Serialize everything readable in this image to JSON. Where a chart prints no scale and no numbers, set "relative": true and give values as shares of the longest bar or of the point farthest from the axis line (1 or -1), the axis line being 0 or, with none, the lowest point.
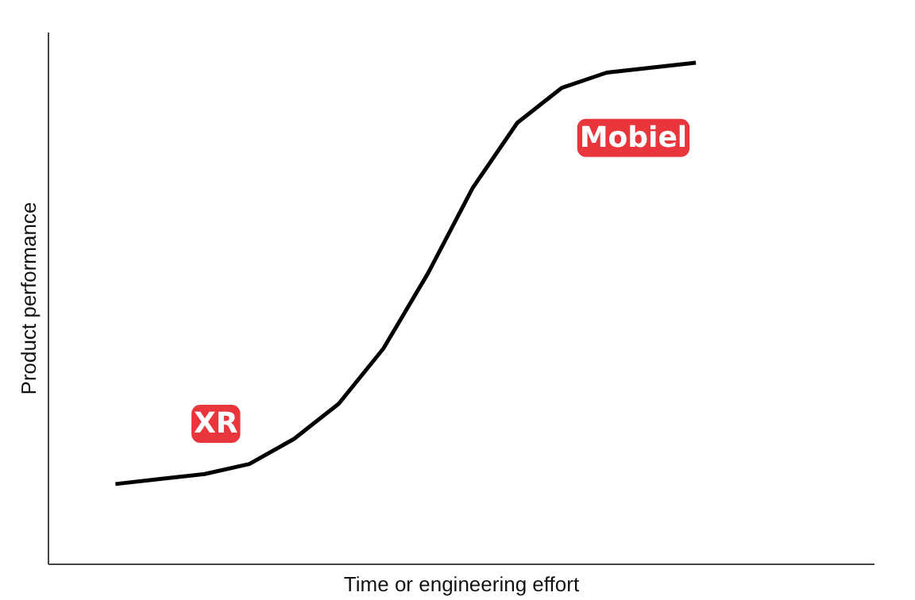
{
  "chart_data": {
    "type": "line",
    "relative": true,
    "xlabel": "Time or engineering effort",
    "ylabel": "Product performance",
    "categories": [
      null,
      null,
      null,
      null,
      null,
      null,
      null,
      null,
      null,
      null,
      null,
      null,
      null,
      null
    ],
    "series": [
      {
        "color": "#000000",
        "values": [
          0.16,
          0.17,
          0.18,
          0.2,
          0.25,
          0.32,
          0.43,
          0.58,
          0.75,
          0.88,
          0.95,
          0.98,
          0.99,
          1
        ]
      }
    ],
    "annotations": [
      "XR",
      "Mobiel"
    ]
  }
}
